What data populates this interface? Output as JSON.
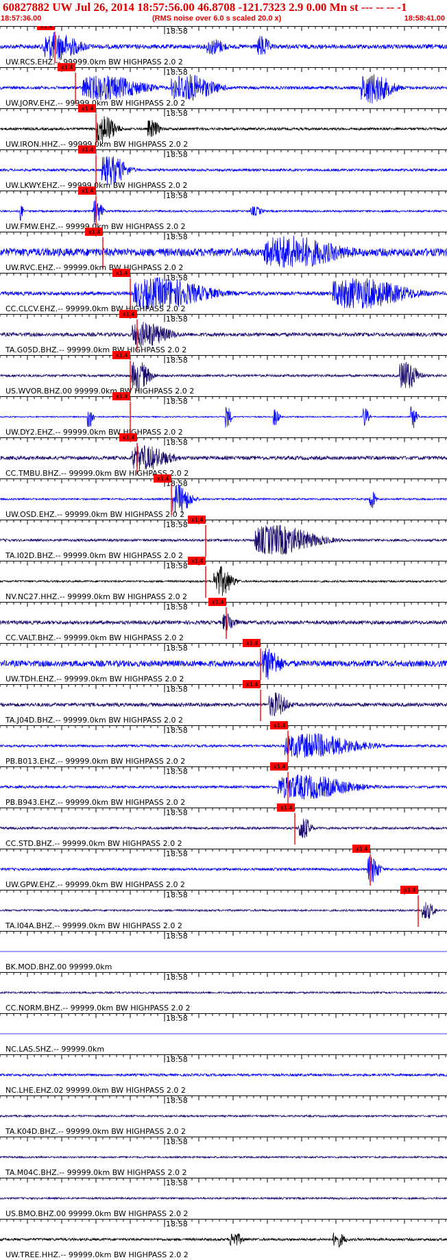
{
  "header": {
    "title": "60827882 UW Jul 26, 2014 18:57:56.00   46.8708 -121.7323  2.9 0.00 Mn st --- -- --  -1",
    "time_start": "18:57:36.00",
    "time_end": "18:58:41.00",
    "rms_note": "(RMS noise over 6.0 s scaled 20.0 x)"
  },
  "chart_data": {
    "type": "line",
    "title": "60827882 UW Jul 26, 2014 18:57:56.00   46.8708 -121.7323  2.9 0.00 Mn st --- -- --  -1",
    "x_axis": {
      "start": "18:57:36.00",
      "end": "18:58:41.00",
      "range_seconds": [
        0,
        65
      ],
      "minute_tick_label": "18:58",
      "minute_tick_seconds": 24
    },
    "pick_label": "x1.4",
    "colors": {
      "blue": "#0000ff",
      "navy": "#1a0a6e",
      "black": "#000000",
      "pick": "#ff0000",
      "axis": "#000000"
    },
    "series": [
      {
        "label": "UW.RCS.EHZ.-- 99999.0km BW  HIGHPASS  2.0  2",
        "color": "blue",
        "pick_s": 8,
        "amp": 0.35,
        "bursts": [
          [
            8,
            6,
            0.9
          ],
          [
            31,
            3,
            0.5
          ],
          [
            38,
            2,
            0.7
          ]
        ]
      },
      {
        "label": "UW.JORV.EHZ.-- 99999.0km BW  HIGHPASS  2.0  2",
        "color": "blue",
        "pick_s": 11,
        "amp": 0.25,
        "bursts": [
          [
            15,
            10,
            0.8
          ],
          [
            27,
            7,
            0.9
          ],
          [
            54,
            5,
            1.0
          ]
        ]
      },
      {
        "label": "UW.IRON.HHZ.-- 99999.0km BW  HIGHPASS  2.0  2",
        "color": "black",
        "pick_s": 14,
        "amp": 0.2,
        "bursts": [
          [
            15,
            3,
            1.0
          ],
          [
            22,
            2,
            0.6
          ]
        ]
      },
      {
        "label": "UW.LKWY.EHZ.-- 99999.0km BW  HIGHPASS  2.0  2",
        "color": "blue",
        "pick_s": 14,
        "amp": 0.2,
        "bursts": [
          [
            16,
            4,
            1.0
          ]
        ]
      },
      {
        "label": "UW.FMW.EHZ.-- 99999.0km BW  HIGHPASS  2.0  2",
        "color": "blue",
        "pick_s": 14,
        "amp": 0.15,
        "bursts": [
          [
            3,
            0.5,
            0.7
          ],
          [
            14,
            1.5,
            0.8
          ],
          [
            37,
            2,
            0.3
          ]
        ]
      },
      {
        "label": "UW.RVC.EHZ.-- 99999.0km BW  HIGHPASS  2.0  2",
        "color": "blue",
        "pick_s": 15,
        "amp": 0.65,
        "bursts": [
          [
            42,
            12,
            1.0
          ]
        ]
      },
      {
        "label": "CC.CLCV.EHZ.-- 99999.0km BW  HIGHPASS  2.0  2",
        "color": "blue",
        "pick_s": 19,
        "amp": 0.3,
        "bursts": [
          [
            23,
            12,
            1.0
          ],
          [
            52,
            12,
            1.0
          ]
        ]
      },
      {
        "label": "TA.G05D.BHZ.-- 99999.0km BW  HIGHPASS  2.0  2",
        "color": "navy",
        "pick_s": 20,
        "amp": 0.3,
        "bursts": [
          [
            21,
            6,
            0.8
          ]
        ]
      },
      {
        "label": "US.WVOR.BHZ.00 99999.0km BW  HIGHPASS  2.0  2",
        "color": "navy",
        "pick_s": 19,
        "amp": 0.2,
        "bursts": [
          [
            20,
            3,
            1.0
          ],
          [
            59,
            3,
            1.0
          ]
        ]
      },
      {
        "label": "UW.DY2.EHZ.-- 99999.0km BW  HIGHPASS  2.0  2",
        "color": "blue",
        "pick_s": 19,
        "amp": 0.1,
        "bursts": [
          [
            13,
            1,
            0.8
          ],
          [
            33,
            1,
            0.8
          ],
          [
            40,
            1,
            0.6
          ],
          [
            53,
            1,
            0.7
          ],
          [
            60,
            1,
            0.8
          ]
        ]
      },
      {
        "label": "CC.TMBU.BHZ.-- 99999.0km BW  HIGHPASS  2.0  2",
        "color": "navy",
        "pick_s": 20,
        "amp": 0.3,
        "bursts": [
          [
            21,
            6,
            0.8
          ]
        ]
      },
      {
        "label": "UW.OSD.EHZ.-- 99999.0km BW  HIGHPASS  2.0  2",
        "color": "blue",
        "pick_s": 25,
        "amp": 0.15,
        "bursts": [
          [
            26,
            3,
            1.0
          ],
          [
            54,
            1,
            0.7
          ]
        ]
      },
      {
        "label": "TA.I02D.BHZ.-- 99999.0km BW  HIGHPASS  2.0  2",
        "color": "navy",
        "pick_s": 30,
        "amp": 0.2,
        "bursts": [
          [
            40,
            10,
            1.0
          ]
        ]
      },
      {
        "label": "NV.NC27.HHZ.-- 99999.0km BW  HIGHPASS  2.0  2",
        "color": "black",
        "pick_s": 30,
        "amp": 0.15,
        "bursts": [
          [
            32,
            3,
            1.0
          ]
        ]
      },
      {
        "label": "CC.VALT.BHZ.-- 99999.0km BW  HIGHPASS  2.0  2",
        "color": "navy",
        "pick_s": 33,
        "amp": 0.3,
        "bursts": [
          [
            33,
            2,
            0.6
          ]
        ]
      },
      {
        "label": "UW.TDH.EHZ.-- 99999.0km BW  HIGHPASS  2.0  2",
        "color": "blue",
        "pick_s": 38,
        "amp": 0.5,
        "bursts": [
          [
            39,
            3,
            1.0
          ]
        ]
      },
      {
        "label": "TA.J04D.BHZ.-- 99999.0km BW  HIGHPASS  2.0  2",
        "color": "navy",
        "pick_s": 38,
        "amp": 0.3,
        "bursts": [
          [
            40,
            3,
            0.8
          ]
        ]
      },
      {
        "label": "PB.B013.EHZ.-- 99999.0km BW  HIGHPASS  2.0  2",
        "color": "blue",
        "pick_s": 42,
        "amp": 0.2,
        "bursts": [
          [
            45,
            12,
            0.8
          ]
        ]
      },
      {
        "label": "PB.B943.EHZ.-- 99999.0km BW  HIGHPASS  2.0  2",
        "color": "blue",
        "pick_s": 42,
        "amp": 0.2,
        "bursts": [
          [
            44,
            12,
            0.8
          ]
        ]
      },
      {
        "label": "CC.STD.BHZ.-- 99999.0km BW  HIGHPASS  2.0  2",
        "color": "navy",
        "pick_s": 43,
        "amp": 0.2,
        "bursts": [
          [
            44,
            2,
            0.8
          ]
        ]
      },
      {
        "label": "UW.GPW.EHZ.-- 99999.0km BW  HIGHPASS  2.0  2",
        "color": "blue",
        "pick_s": 54,
        "amp": 0.2,
        "bursts": [
          [
            54,
            2,
            0.9
          ]
        ]
      },
      {
        "label": "TA.I04A.BHZ.-- 99999.0km BW  HIGHPASS  2.0  2",
        "color": "navy",
        "pick_s": 61,
        "amp": 0.15,
        "bursts": [
          [
            62,
            2,
            0.6
          ]
        ]
      },
      {
        "label": "BK.MOD.BHZ.00 99999.0km",
        "color": "blue",
        "pick_s": null,
        "amp": 0.0,
        "bursts": []
      },
      {
        "label": "CC.NORM.BHZ.-- 99999.0km BW  HIGHPASS  2.0  2",
        "color": "navy",
        "pick_s": null,
        "amp": 0.15,
        "bursts": []
      },
      {
        "label": "NC.LAS.SHZ.-- 99999.0km",
        "color": "blue",
        "pick_s": null,
        "amp": 0.0,
        "bursts": []
      },
      {
        "label": "NC.LHE.EHZ.02 99999.0km BW  HIGHPASS  2.0  2",
        "color": "blue",
        "pick_s": null,
        "amp": 0.2,
        "bursts": []
      },
      {
        "label": "TA.K04D.BHZ.-- 99999.0km BW  HIGHPASS  2.0  2",
        "color": "navy",
        "pick_s": null,
        "amp": 0.15,
        "bursts": []
      },
      {
        "label": "TA.M04C.BHZ.-- 99999.0km BW  HIGHPASS  2.0  2",
        "color": "navy",
        "pick_s": null,
        "amp": 0.15,
        "bursts": []
      },
      {
        "label": "US.BMO.BHZ.00 99999.0km BW  HIGHPASS  2.0  2",
        "color": "navy",
        "pick_s": null,
        "amp": 0.15,
        "bursts": []
      },
      {
        "label": "UW.TREE.HHZ.-- 99999.0km BW  HIGHPASS  2.0  2",
        "color": "black",
        "pick_s": null,
        "amp": 0.2,
        "bursts": [
          [
            34,
            2,
            0.5
          ],
          [
            49,
            2,
            0.5
          ]
        ]
      }
    ]
  }
}
